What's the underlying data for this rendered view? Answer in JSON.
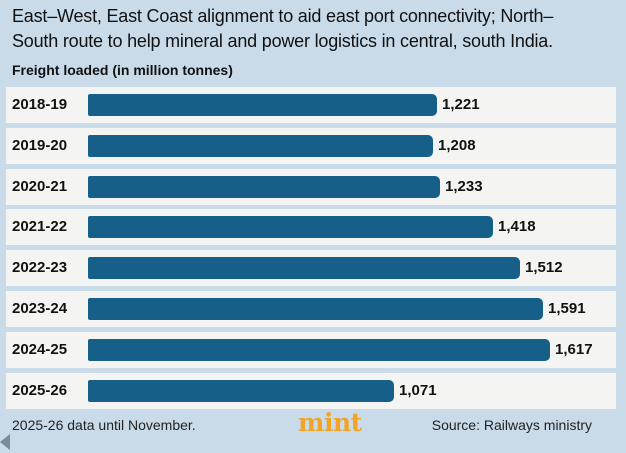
{
  "header": {
    "line1": "East–West, East Coast alignment to aid east port connectivity; North–",
    "line2": "South route to help mineral and power logistics in central, south India."
  },
  "chart_data": {
    "type": "bar",
    "orientation": "horizontal",
    "title": "Freight loaded (in million tonnes)",
    "categories": [
      "2018-19",
      "2019-20",
      "2020-21",
      "2021-22",
      "2022-23",
      "2023-24",
      "2024-25",
      "2025-26"
    ],
    "values": [
      1221,
      1208,
      1233,
      1418,
      1512,
      1591,
      1617,
      1071
    ],
    "value_labels": [
      "1,221",
      "1,208",
      "1,233",
      "1,418",
      "1,512",
      "1,591",
      "1,617",
      "1,071"
    ],
    "xlim": [
      0,
      1617
    ],
    "bar_color": "#165f88"
  },
  "footer": {
    "note": "2025-26 data until November.",
    "brand": "mint",
    "source": "Source: Railways ministry"
  },
  "colors": {
    "background": "#c9dbe9",
    "row_background": "#f4f4f2",
    "brand": "#f3a326"
  }
}
